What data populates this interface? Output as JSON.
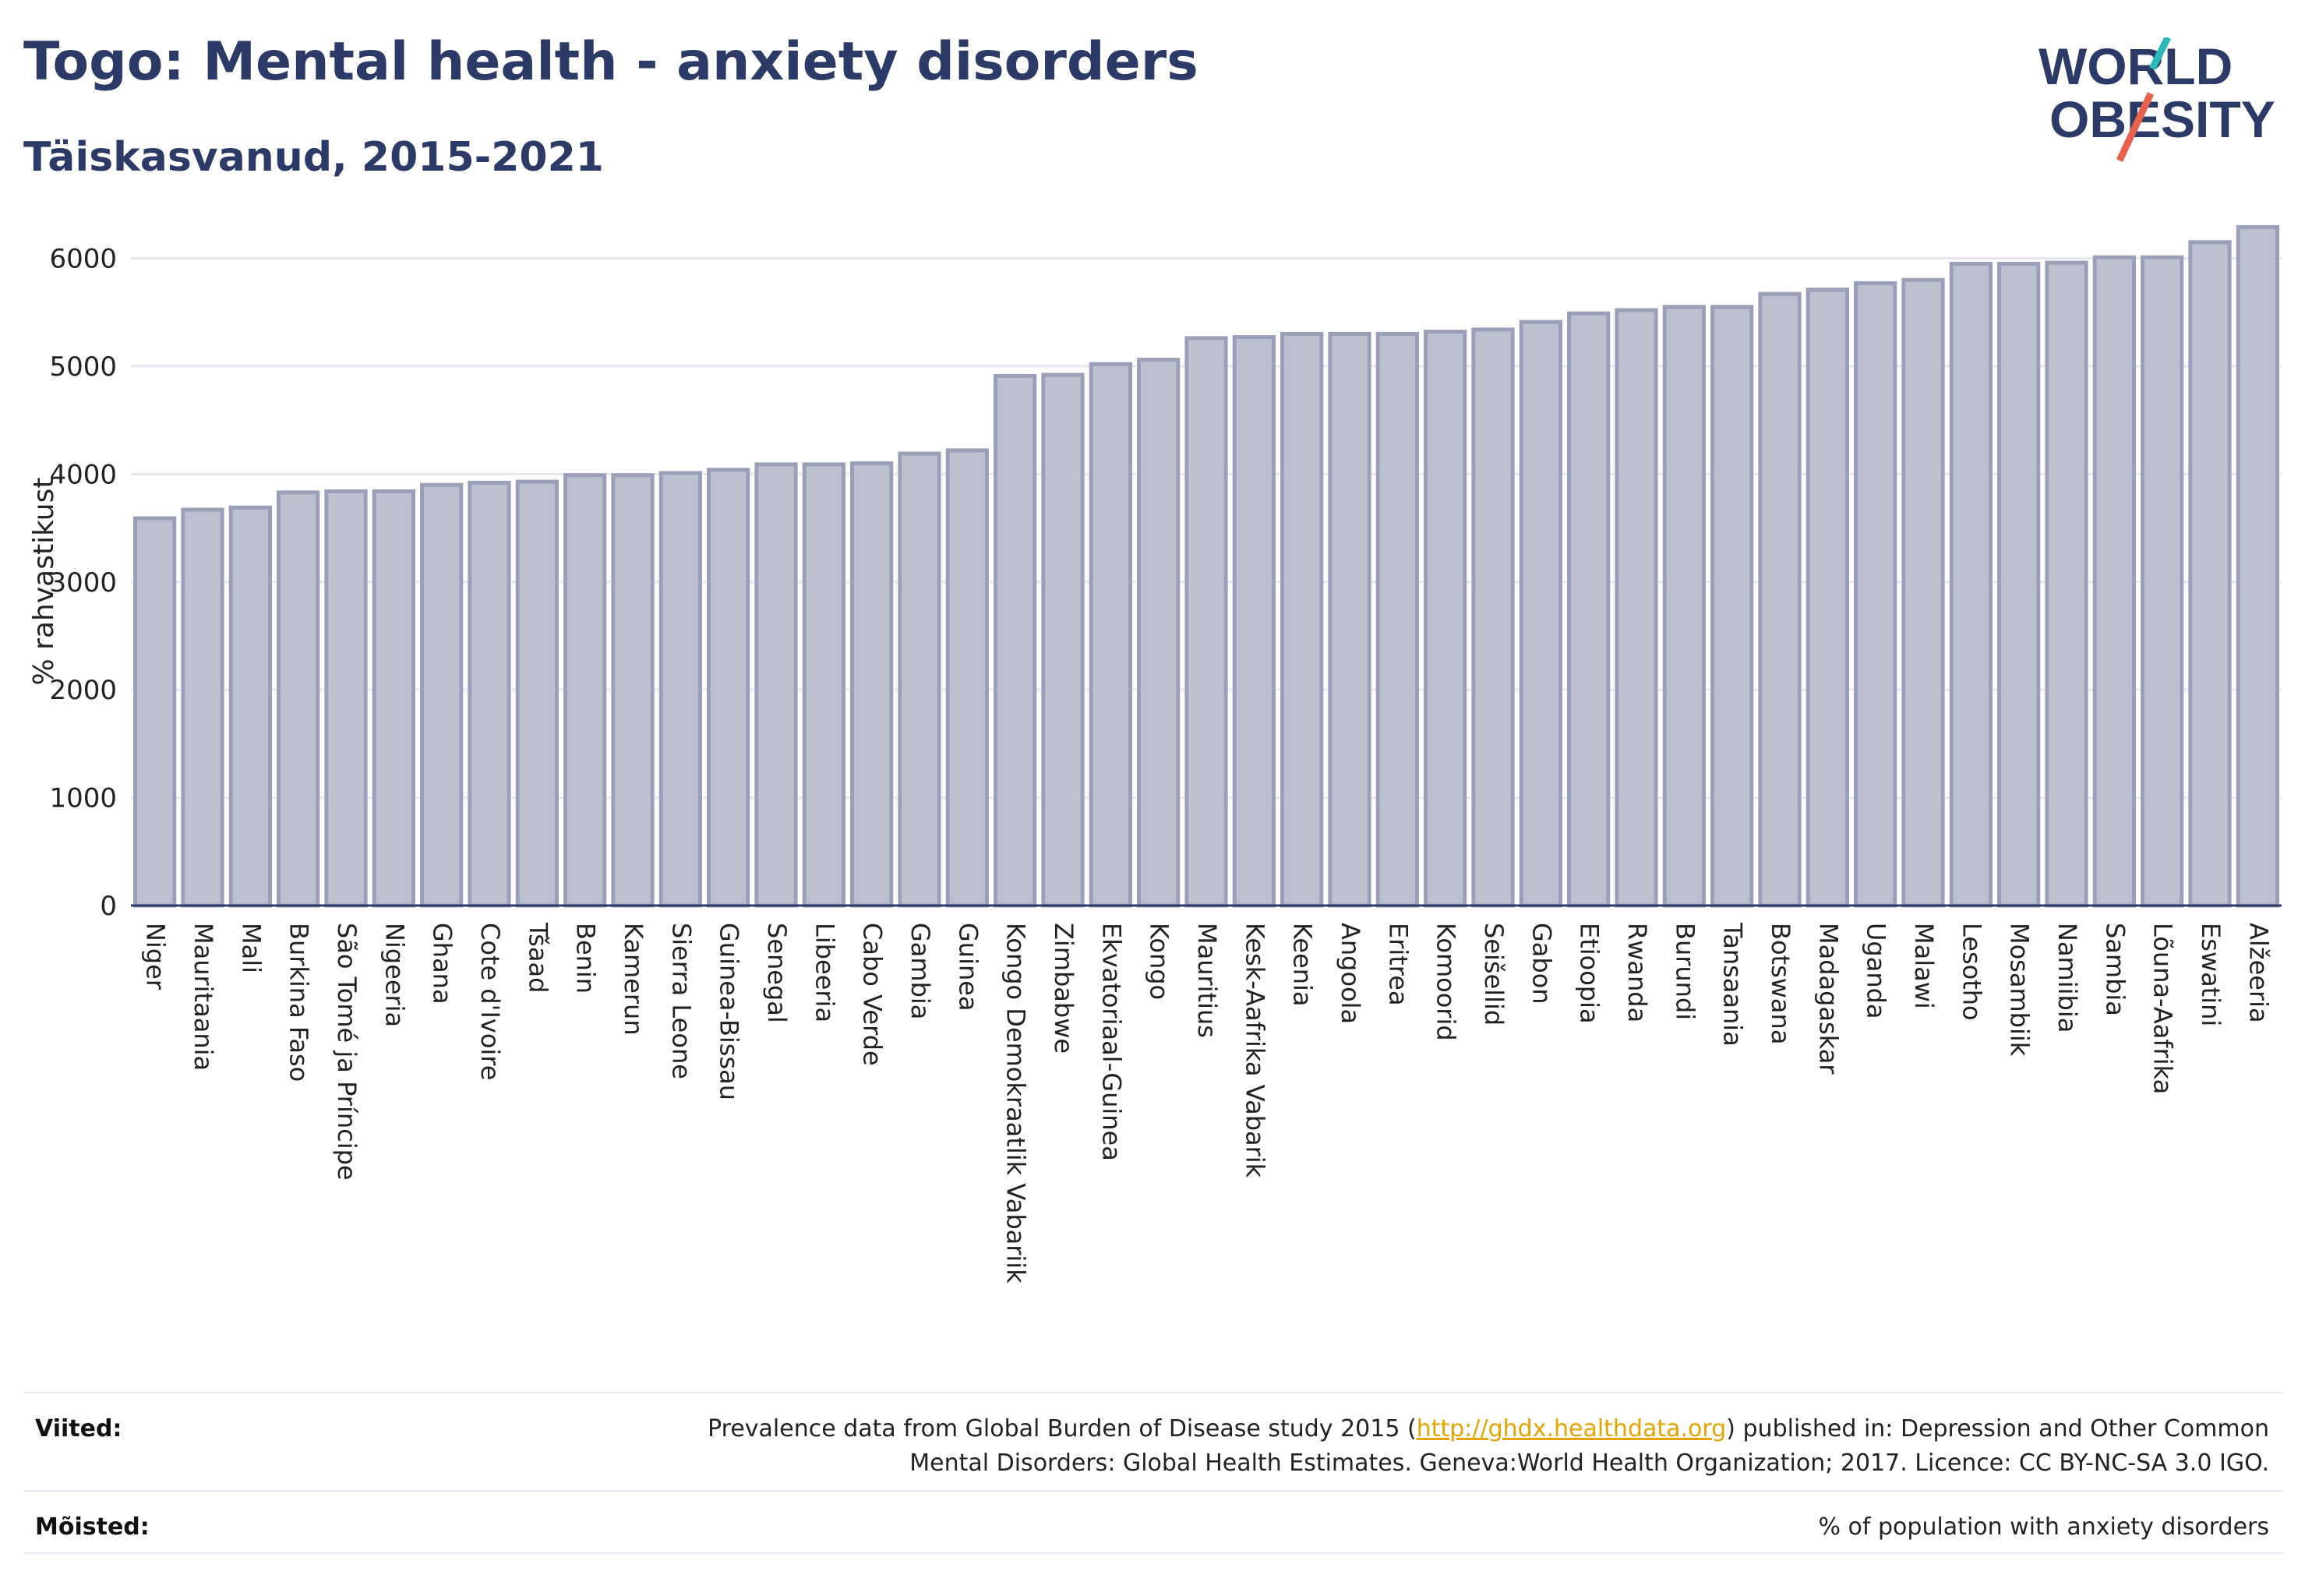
{
  "header": {
    "title": "Togo: Mental health - anxiety disorders",
    "subtitle": "Täiskasvanud, 2015-2021"
  },
  "logo": {
    "line1": "WORLD",
    "line2": "OBESITY",
    "colors": {
      "text": "#2b3a67",
      "slash_red": "#e8614d",
      "slash_teal": "#2bb9b9"
    }
  },
  "chart_data": {
    "type": "bar",
    "ylabel": "% rahvastikust",
    "xlabel": "",
    "ylim": [
      0,
      6300
    ],
    "yticks": [
      0,
      1000,
      2000,
      3000,
      4000,
      5000,
      6000
    ],
    "grid": true,
    "colors": {
      "bar_fill": "#bcc0cf",
      "bar_stroke": "#9aa0b8",
      "axis": "#2b3a67",
      "grid": "#e6e7ee"
    },
    "categories": [
      "Niger",
      "Mauritaania",
      "Mali",
      "Burkina Faso",
      "São Tomé ja Príncipe",
      "Nigeeria",
      "Ghana",
      "Cote d'Ivoire",
      "Tšaad",
      "Benin",
      "Kamerun",
      "Sierra Leone",
      "Guinea-Bissau",
      "Senegal",
      "Libeeria",
      "Cabo Verde",
      "Gambia",
      "Guinea",
      "Kongo Demokraatlik Vabariik",
      "Zimbabwe",
      "Ekvatoriaal-Guinea",
      "Kongo",
      "Mauritius",
      "Kesk-Aafrika Vabarik",
      "Keenia",
      "Angoola",
      "Eritrea",
      "Komoorid",
      "Seišellid",
      "Gabon",
      "Etioopia",
      "Rwanda",
      "Burundi",
      "Tansaania",
      "Botswana",
      "Madagaskar",
      "Uganda",
      "Malawi",
      "Lesotho",
      "Mosambiik",
      "Namiibia",
      "Sambia",
      "Lõuna-Aafrika",
      "Eswatini",
      "Alžeeria"
    ],
    "values": [
      3590,
      3670,
      3690,
      3830,
      3840,
      3840,
      3900,
      3920,
      3930,
      3990,
      3990,
      4010,
      4040,
      4090,
      4090,
      4100,
      4190,
      4220,
      4910,
      4920,
      5020,
      5060,
      5260,
      5270,
      5300,
      5300,
      5300,
      5320,
      5340,
      5410,
      5490,
      5520,
      5550,
      5550,
      5670,
      5710,
      5770,
      5800,
      5950,
      5950,
      5960,
      6010,
      6010,
      6150,
      6290
    ]
  },
  "footer": {
    "sources_label": "Viited:",
    "sources_pre": "Prevalence data from Global Burden of Disease study 2015 (",
    "sources_link": "http://ghdx.healthdata.org",
    "sources_post": ") published in: Depression and Other Common",
    "sources_line2": "Mental Disorders: Global Health Estimates. Geneva:World Health Organization; 2017. Licence: CC BY-NC-SA 3.0 IGO.",
    "definitions_label": "Mõisted:",
    "definitions_text": "% of population with anxiety disorders"
  }
}
